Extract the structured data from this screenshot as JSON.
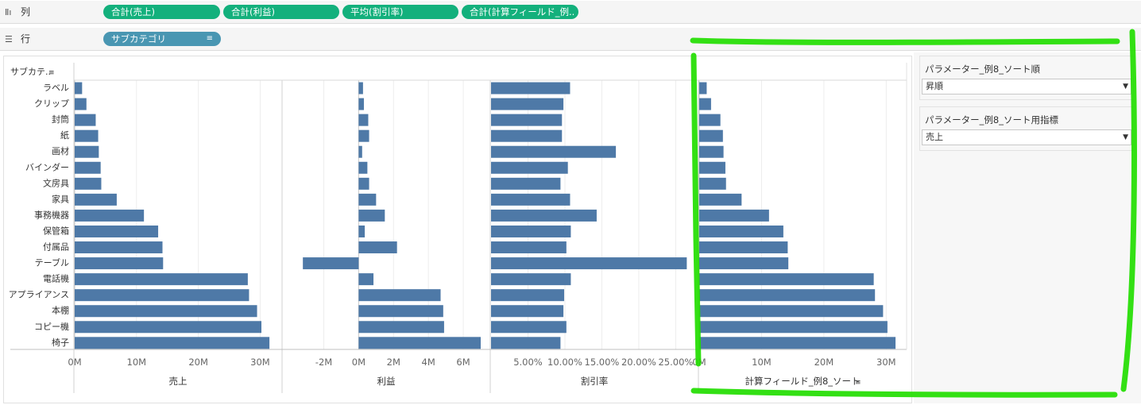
{
  "shelves": {
    "columns": {
      "label": "列",
      "icon": "columns-icon",
      "pills": [
        "合計(売上)",
        "合計(利益)",
        "平均(割引率)",
        "合計(計算フィールド_例.."
      ]
    },
    "rows": {
      "label": "行",
      "icon": "rows-icon",
      "pills": [
        "サブカテゴリ"
      ]
    }
  },
  "row_header": "サブカテ..",
  "parameters": [
    {
      "title": "パラメーター_例8_ソート順",
      "value": "昇順"
    },
    {
      "title": "パラメーター_例8_ソート用指標",
      "value": "売上"
    }
  ],
  "colors": {
    "bar": "#4e79a7",
    "pill_green": "#13b07c",
    "pill_blue": "#4996b2",
    "annotation": "#22dd00"
  },
  "chart_data": [
    {
      "type": "bar",
      "orientation": "horizontal",
      "xlabel": "売上",
      "categories": [
        "ラベル",
        "クリップ",
        "封筒",
        "紙",
        "画材",
        "バインダー",
        "文房具",
        "家具",
        "事務機器",
        "保管箱",
        "付属品",
        "テーブル",
        "電話機",
        "アプライアンス",
        "本棚",
        "コピー機",
        "椅子"
      ],
      "values": [
        1.2,
        1.9,
        3.4,
        3.8,
        3.9,
        4.2,
        4.3,
        6.8,
        11.2,
        13.5,
        14.2,
        14.3,
        28.0,
        28.2,
        29.5,
        30.2,
        31.5
      ],
      "xlim": [
        0,
        32
      ],
      "ticks": [
        0,
        10,
        20,
        30
      ],
      "tick_labels": [
        "0M",
        "10M",
        "20M",
        "30M"
      ]
    },
    {
      "type": "bar",
      "orientation": "horizontal",
      "xlabel": "利益",
      "categories": [
        "ラベル",
        "クリップ",
        "封筒",
        "紙",
        "画材",
        "バインダー",
        "文房具",
        "家具",
        "事務機器",
        "保管箱",
        "付属品",
        "テーブル",
        "電話機",
        "アプライアンス",
        "本棚",
        "コピー機",
        "椅子"
      ],
      "values": [
        0.25,
        0.3,
        0.55,
        0.6,
        0.2,
        0.5,
        0.6,
        1.0,
        1.5,
        0.35,
        2.2,
        -3.2,
        0.85,
        4.7,
        4.85,
        4.9,
        7.0
      ],
      "xlim": [
        -3.8,
        7.0
      ],
      "ticks": [
        -2,
        0,
        2,
        4,
        6
      ],
      "tick_labels": [
        "-2M",
        "0M",
        "2M",
        "4M",
        "6M"
      ]
    },
    {
      "type": "bar",
      "orientation": "horizontal",
      "xlabel": "割引率",
      "categories": [
        "ラベル",
        "クリップ",
        "封筒",
        "紙",
        "画材",
        "バインダー",
        "文房具",
        "家具",
        "事務機器",
        "保管箱",
        "付属品",
        "テーブル",
        "電話機",
        "アプライアンス",
        "本棚",
        "コピー機",
        "椅子"
      ],
      "values": [
        10.7,
        9.8,
        9.6,
        9.6,
        16.9,
        10.4,
        9.4,
        10.7,
        14.3,
        10.8,
        10.2,
        26.5,
        10.8,
        9.9,
        9.8,
        10.2,
        9.4
      ],
      "xlim": [
        0,
        27
      ],
      "ticks": [
        5,
        10,
        15,
        20,
        25
      ],
      "tick_labels": [
        "5.00%",
        "10.00%",
        "15.00%",
        "20.00%",
        "25.00%"
      ]
    },
    {
      "type": "bar",
      "orientation": "horizontal",
      "xlabel": "計算フィールド_例8_ソート",
      "categories": [
        "ラベル",
        "クリップ",
        "封筒",
        "紙",
        "画材",
        "バインダー",
        "文房具",
        "家具",
        "事務機器",
        "保管箱",
        "付属品",
        "テーブル",
        "電話機",
        "アプライアンス",
        "本棚",
        "コピー機",
        "椅子"
      ],
      "values": [
        1.2,
        1.9,
        3.4,
        3.8,
        3.9,
        4.2,
        4.3,
        6.8,
        11.2,
        13.5,
        14.2,
        14.3,
        28.0,
        28.2,
        29.5,
        30.2,
        31.5
      ],
      "xlim": [
        0,
        32
      ],
      "ticks": [
        0,
        10,
        20,
        30
      ],
      "tick_labels": [
        "0M",
        "10M",
        "20M",
        "30M"
      ]
    }
  ]
}
